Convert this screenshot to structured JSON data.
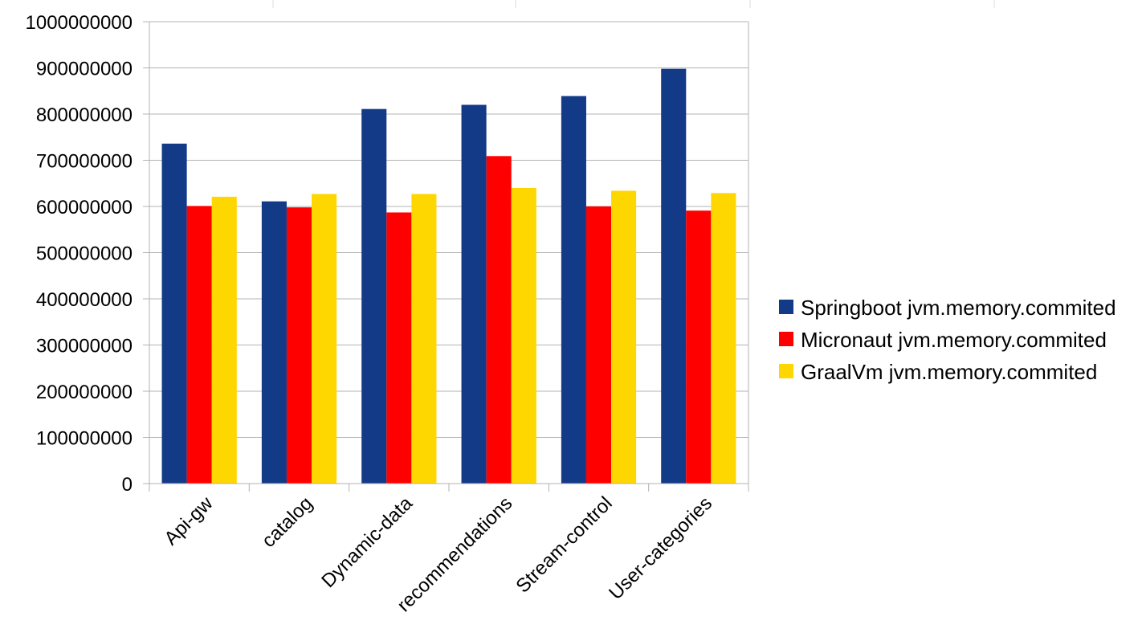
{
  "chart_data": {
    "type": "bar",
    "categories": [
      "Api-gw",
      "catalog",
      "Dynamic-data",
      "recommendations",
      "Stream-control",
      "User-categories"
    ],
    "series": [
      {
        "name": "Springboot jvm.memory.commited",
        "color": "#133a87",
        "values": [
          736000000,
          611000000,
          811000000,
          820000000,
          839000000,
          898000000
        ]
      },
      {
        "name": "Micronaut jvm.memory.commited",
        "color": "#ff0000",
        "values": [
          601000000,
          598000000,
          587000000,
          709000000,
          600000000,
          591000000
        ]
      },
      {
        "name": "GraalVm jvm.memory.commited",
        "color": "#ffd700",
        "values": [
          621000000,
          627000000,
          627000000,
          640000000,
          634000000,
          629000000
        ]
      }
    ],
    "ylim": [
      0,
      1000000000
    ],
    "yticks": [
      "0",
      "100000000",
      "200000000",
      "300000000",
      "400000000",
      "500000000",
      "600000000",
      "700000000",
      "800000000",
      "900000000",
      "1000000000"
    ],
    "grid": true,
    "legend": "right"
  }
}
